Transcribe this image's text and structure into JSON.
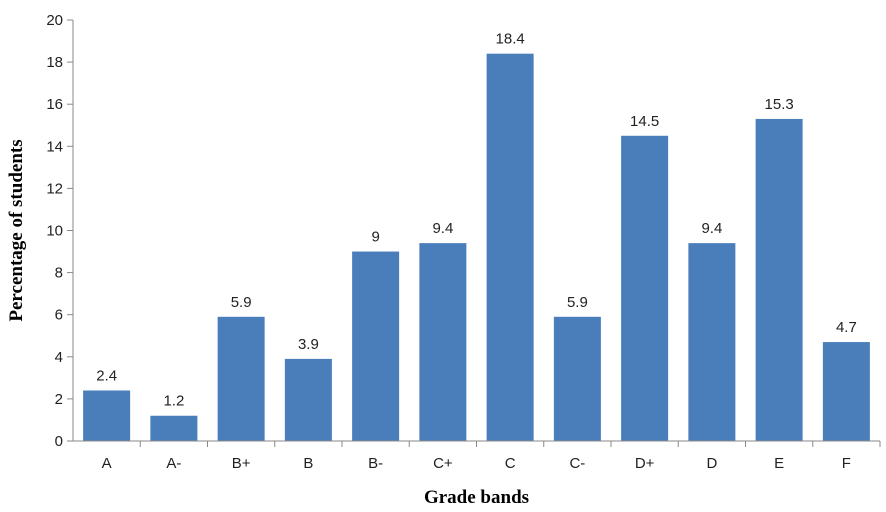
{
  "chart_data": {
    "type": "bar",
    "title": "",
    "xlabel": "Grade bands",
    "ylabel": "Percentage of students",
    "ylim": [
      0,
      20
    ],
    "yticks": [
      0,
      2,
      4,
      6,
      8,
      10,
      12,
      14,
      16,
      18,
      20
    ],
    "grid": false,
    "legend": "none",
    "bar_color": "#4a7ebb",
    "categories": [
      "A",
      "A-",
      "B+",
      "B",
      "B-",
      "C+",
      "C",
      "C-",
      "D+",
      "D",
      "E",
      "F"
    ],
    "values": [
      2.4,
      1.2,
      5.9,
      3.9,
      9,
      9.4,
      18.4,
      5.9,
      14.5,
      9.4,
      15.3,
      4.7
    ]
  }
}
